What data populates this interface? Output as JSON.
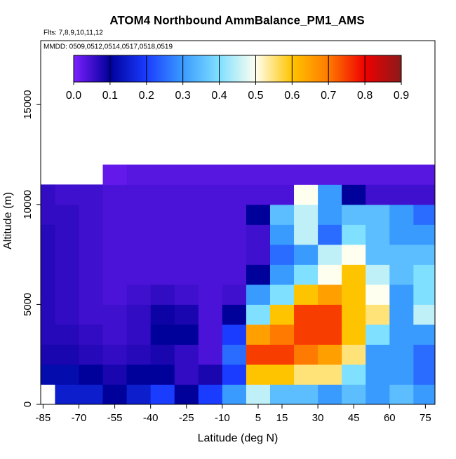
{
  "chart_data": {
    "type": "heatmap",
    "title": "ATOM4 Northbound AmmBalance_PM1_AMS",
    "subtitle": [
      "Flts: 7,8,9,10,11,12",
      "MMDD: 0509,0512,0514,0517,0518,0519"
    ],
    "xlabel": "Latitude (deg N)",
    "ylabel": "Altitude (m)",
    "xlim": [
      -86,
      79
    ],
    "ylim": [
      0,
      18200
    ],
    "xticks": [
      -85,
      -70,
      -55,
      -40,
      -25,
      -10,
      5,
      15,
      30,
      45,
      60,
      75
    ],
    "yticks": [
      0,
      5000,
      10000,
      15000
    ],
    "clim": [
      0,
      0.9
    ],
    "cticks": [
      {
        "value": 0,
        "label": "0.0"
      },
      0.1,
      0.2,
      0.3,
      0.4,
      0.5,
      0.6,
      0.7,
      0.8,
      0.9
    ],
    "colormap": [
      "#7d1fff",
      "#00009a",
      "#1a3cff",
      "#3a9bff",
      "#7fe0ff",
      "#fffff0",
      "#ffc400",
      "#ff7a00",
      "#f00000",
      "#8b1a1a"
    ],
    "x": [
      -85,
      -75,
      -65,
      -55,
      -45,
      -35,
      -25,
      -15,
      -5,
      5,
      15,
      25,
      35,
      45,
      55,
      65,
      75
    ],
    "y": [
      500,
      1500,
      2500,
      3500,
      4500,
      5500,
      6500,
      7500,
      8500,
      9500,
      10500,
      11500
    ],
    "z": [
      [
        null,
        0.15,
        0.15,
        0.1,
        0.15,
        0.2,
        0.1,
        0.2,
        0.3,
        0.45,
        0.35,
        0.35,
        0.3,
        0.35,
        0.3,
        0.35,
        0.3
      ],
      [
        0.12,
        0.12,
        0.1,
        0.08,
        0.1,
        0.1,
        0.06,
        0.08,
        0.2,
        0.6,
        0.6,
        0.55,
        0.55,
        0.4,
        0.3,
        0.3,
        0.25
      ],
      [
        0.08,
        0.08,
        0.07,
        0.06,
        0.07,
        0.08,
        0.06,
        0.04,
        0.25,
        0.75,
        0.75,
        0.7,
        0.65,
        0.55,
        0.3,
        0.3,
        0.25
      ],
      [
        0.07,
        0.07,
        0.06,
        0.05,
        0.06,
        0.1,
        0.1,
        0.04,
        0.2,
        0.65,
        0.7,
        0.75,
        0.75,
        0.6,
        0.4,
        0.3,
        0.3
      ],
      [
        0.07,
        0.06,
        0.05,
        0.05,
        0.06,
        0.09,
        0.08,
        0.04,
        0.1,
        0.4,
        0.6,
        0.75,
        0.75,
        0.6,
        0.55,
        0.3,
        0.45
      ],
      [
        0.07,
        0.06,
        0.05,
        0.04,
        0.05,
        0.06,
        0.05,
        0.04,
        0.05,
        0.3,
        0.4,
        0.6,
        0.65,
        0.6,
        0.5,
        0.3,
        0.4
      ],
      [
        0.07,
        0.06,
        0.05,
        0.04,
        0.04,
        0.04,
        0.04,
        0.04,
        0.04,
        0.1,
        0.3,
        0.4,
        0.5,
        0.6,
        0.45,
        0.35,
        0.4
      ],
      [
        0.07,
        0.06,
        0.05,
        0.04,
        0.04,
        0.04,
        0.04,
        0.04,
        0.04,
        0.05,
        0.25,
        0.3,
        0.45,
        0.5,
        0.35,
        0.35,
        0.35
      ],
      [
        0.07,
        0.06,
        0.05,
        0.04,
        0.04,
        0.04,
        0.04,
        0.04,
        0.04,
        0.05,
        0.3,
        0.45,
        0.25,
        0.4,
        0.35,
        0.3,
        0.3
      ],
      [
        0.06,
        0.06,
        0.05,
        0.04,
        0.04,
        0.04,
        0.04,
        0.04,
        0.04,
        0.1,
        0.35,
        0.45,
        0.3,
        0.35,
        0.35,
        0.3,
        0.25
      ],
      [
        0.06,
        0.05,
        0.05,
        0.04,
        0.04,
        0.04,
        0.04,
        0.04,
        0.04,
        0.04,
        0.04,
        0.5,
        0.3,
        0.1,
        0.05,
        0.05,
        0.05
      ],
      [
        null,
        null,
        null,
        0.02,
        0.03,
        0.03,
        0.03,
        0.03,
        0.03,
        0.03,
        0.03,
        0.03,
        0.03,
        0.03,
        0.03,
        0.03,
        0.03
      ]
    ]
  }
}
